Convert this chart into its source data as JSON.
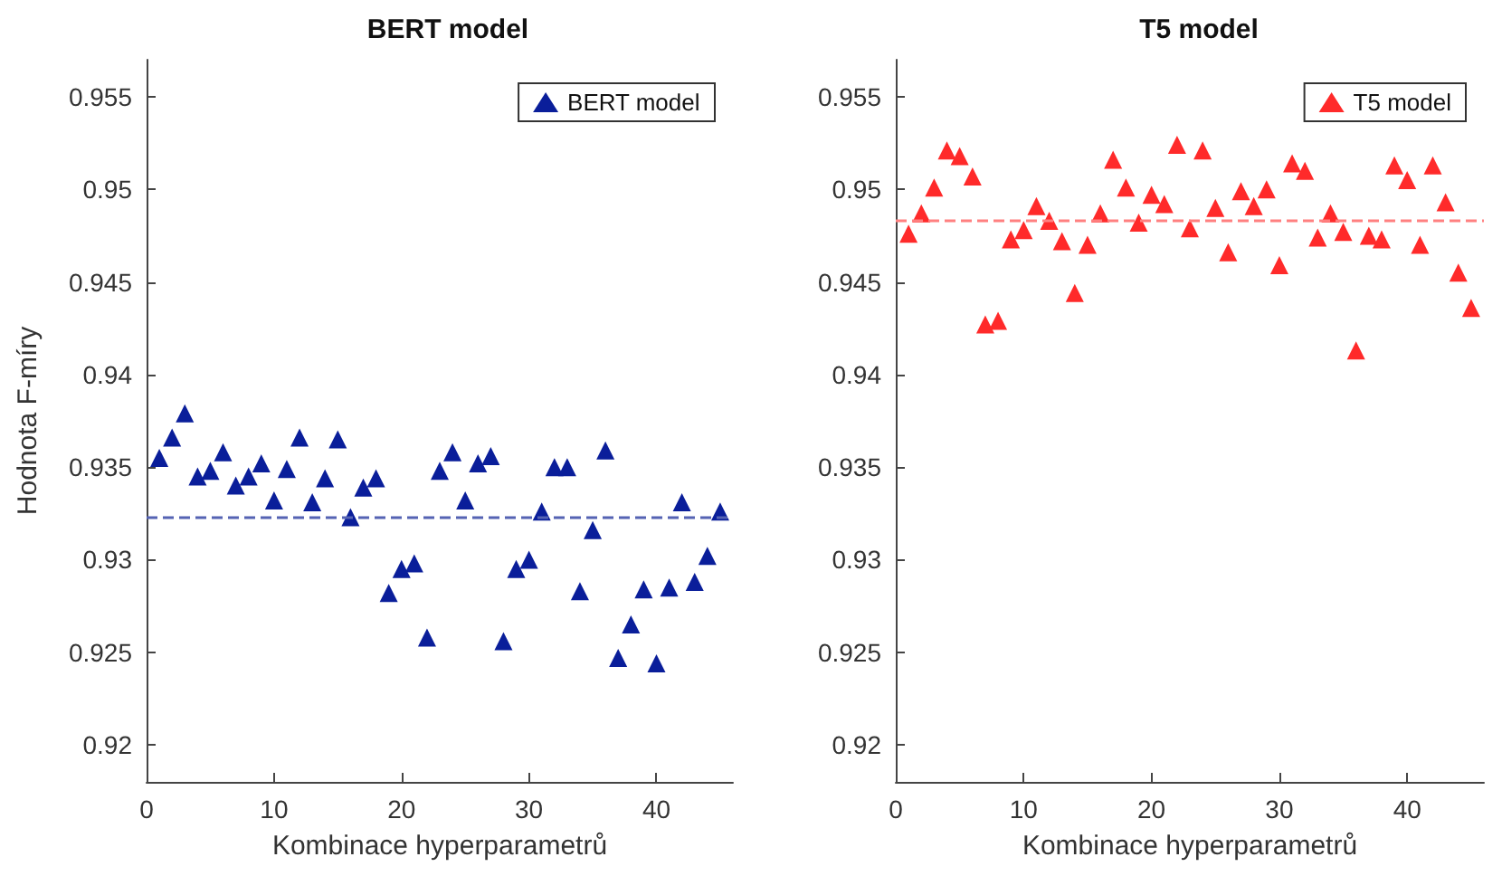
{
  "chart_data": [
    {
      "type": "scatter",
      "title": "BERT model",
      "xlabel": "Kombinace hyperparametrů",
      "ylabel": "Hodnota F-míry",
      "marker": "triangle",
      "legend": "top right",
      "x": [
        1,
        2,
        3,
        4,
        5,
        6,
        7,
        8,
        9,
        10,
        11,
        12,
        13,
        14,
        15,
        16,
        17,
        18,
        19,
        20,
        21,
        22,
        23,
        24,
        25,
        26,
        27,
        28,
        29,
        30,
        31,
        32,
        33,
        34,
        35,
        36,
        37,
        38,
        39,
        40,
        41,
        42,
        43,
        44,
        45
      ],
      "series": [
        {
          "name": "BERT model",
          "color": "#0a1e9a",
          "values": [
            0.9355,
            0.9366,
            0.9379,
            0.9345,
            0.9348,
            0.9358,
            0.934,
            0.9345,
            0.9352,
            0.9332,
            0.9349,
            0.9366,
            0.9331,
            0.9344,
            0.9365,
            0.9323,
            0.9339,
            0.9344,
            0.9282,
            0.9295,
            0.9298,
            0.9258,
            0.9348,
            0.9358,
            0.9332,
            0.9352,
            0.9356,
            0.9256,
            0.9295,
            0.93,
            0.9326,
            0.935,
            0.935,
            0.9283,
            0.9316,
            0.9359,
            0.9247,
            0.9265,
            0.9284,
            0.9244,
            0.9285,
            0.9331,
            0.9288,
            0.9302,
            0.9326
          ]
        }
      ],
      "ref_lines": [
        {
          "axis": "y",
          "value": 0.9323,
          "color": "#5563b3",
          "line_style": "dashed"
        }
      ],
      "xlim": [
        0,
        46
      ],
      "xticks": [
        0,
        10,
        20,
        30,
        40
      ],
      "ylim": [
        0.918,
        0.957
      ],
      "yticks": [
        0.92,
        0.925,
        0.93,
        0.935,
        0.94,
        0.945,
        0.95,
        0.955
      ]
    },
    {
      "type": "scatter",
      "title": "T5 model",
      "xlabel": "Kombinace hyperparametrů",
      "marker": "triangle",
      "legend": "top right",
      "x": [
        1,
        2,
        3,
        4,
        5,
        6,
        7,
        8,
        9,
        10,
        11,
        12,
        13,
        14,
        15,
        16,
        17,
        18,
        19,
        20,
        21,
        22,
        23,
        24,
        25,
        26,
        27,
        28,
        29,
        30,
        31,
        32,
        33,
        34,
        35,
        36,
        37,
        38,
        39,
        40,
        41,
        42,
        43,
        44,
        45
      ],
      "series": [
        {
          "name": "T5 model",
          "color": "#ff2a2a",
          "values": [
            0.9476,
            0.9487,
            0.9501,
            0.9521,
            0.9518,
            0.9507,
            0.9427,
            0.9429,
            0.9473,
            0.9478,
            0.9491,
            0.9483,
            0.9472,
            0.9444,
            0.947,
            0.9487,
            0.9516,
            0.9501,
            0.9482,
            0.9497,
            0.9492,
            0.9524,
            0.9479,
            0.9521,
            0.949,
            0.9466,
            0.9499,
            0.9491,
            0.95,
            0.9459,
            0.9514,
            0.951,
            0.9474,
            0.9487,
            0.9477,
            0.9413,
            0.9475,
            0.9473,
            0.9513,
            0.9505,
            0.947,
            0.9513,
            0.9493,
            0.9455,
            0.9436
          ]
        }
      ],
      "ref_lines": [
        {
          "axis": "y",
          "value": 0.9483,
          "color": "#ff8080",
          "line_style": "dashed"
        }
      ],
      "xlim": [
        0,
        46
      ],
      "xticks": [
        0,
        10,
        20,
        30,
        40
      ],
      "ylim": [
        0.918,
        0.957
      ],
      "yticks": [
        0.92,
        0.925,
        0.93,
        0.935,
        0.94,
        0.945,
        0.95,
        0.955
      ]
    }
  ]
}
